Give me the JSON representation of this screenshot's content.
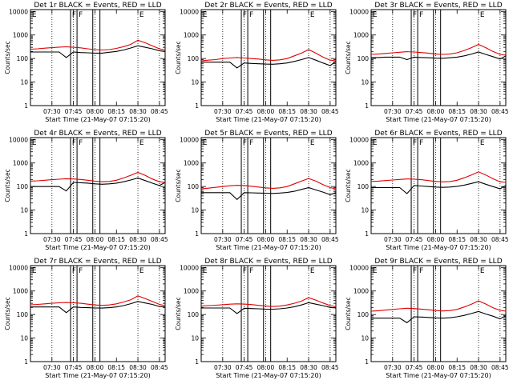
{
  "figure": {
    "xaxis_title": "Start Time (21-May-07 07:15:20)",
    "yaxis_title": "Counts/sec",
    "panel_title_suffix": " BLACK = Events, RED = LLD",
    "xtick_labels": [
      "07:30",
      "07:45",
      "08:00",
      "08:15",
      "08:30",
      "08:45"
    ],
    "ytick_labels": [
      "1",
      "10",
      "100",
      "1000",
      "10000"
    ],
    "colors": {
      "events": "#000000",
      "lld": "#e00000",
      "axes": "#000000"
    },
    "x_range_minutes": [
      0,
      94
    ],
    "xtick_minutes": [
      15,
      30,
      45,
      60,
      75,
      90
    ],
    "y_range": [
      1,
      12000
    ],
    "y_scale": "log",
    "dotted_vertical_minutes": [
      15,
      30,
      45,
      75,
      90
    ],
    "solid_vertical_minutes": [
      28,
      32.5,
      43.5,
      48.5
    ],
    "markers": [
      {
        "label": "E",
        "minute": 0.5
      },
      {
        "label": "F",
        "minute": 28.5
      },
      {
        "label": "F",
        "minute": 33
      },
      {
        "label": "E",
        "minute": 75.5
      }
    ]
  },
  "chart_data": [
    {
      "type": "line",
      "title": "Det 1r",
      "x_minutes": [
        0,
        5,
        10,
        15,
        20,
        25,
        30,
        35,
        40,
        45,
        50,
        55,
        60,
        65,
        70,
        75,
        80,
        85,
        90,
        94
      ],
      "series": [
        {
          "name": "BLACK = Events",
          "values": [
            190,
            190,
            190,
            190,
            190,
            110,
            190,
            180,
            175,
            170,
            170,
            185,
            200,
            230,
            280,
            350,
            300,
            260,
            215,
            200
          ]
        },
        {
          "name": "RED = LLD",
          "values": [
            250,
            260,
            275,
            290,
            305,
            315,
            300,
            285,
            260,
            240,
            230,
            240,
            270,
            320,
            400,
            600,
            470,
            350,
            260,
            230
          ]
        }
      ]
    },
    {
      "type": "line",
      "title": "Det 2r",
      "x_minutes": [
        0,
        5,
        10,
        15,
        20,
        25,
        30,
        35,
        40,
        45,
        50,
        55,
        60,
        65,
        70,
        75,
        80,
        85,
        90,
        94
      ],
      "series": [
        {
          "name": "BLACK = Events",
          "values": [
            70,
            70,
            70,
            70,
            70,
            40,
            65,
            62,
            60,
            58,
            57,
            60,
            65,
            75,
            90,
            110,
            85,
            65,
            50,
            75
          ]
        },
        {
          "name": "RED = LLD",
          "values": [
            80,
            85,
            90,
            100,
            105,
            110,
            105,
            100,
            95,
            88,
            84,
            88,
            100,
            130,
            170,
            240,
            170,
            115,
            85,
            80
          ]
        }
      ]
    },
    {
      "type": "line",
      "title": "Det 3r",
      "x_minutes": [
        0,
        5,
        10,
        15,
        20,
        25,
        30,
        35,
        40,
        45,
        50,
        55,
        60,
        65,
        70,
        75,
        80,
        85,
        90,
        94
      ],
      "series": [
        {
          "name": "BLACK = Events",
          "values": [
            110,
            110,
            115,
            115,
            115,
            90,
            115,
            110,
            108,
            104,
            102,
            108,
            115,
            130,
            155,
            190,
            150,
            120,
            95,
            130
          ]
        },
        {
          "name": "RED = LLD",
          "values": [
            150,
            155,
            165,
            175,
            185,
            195,
            190,
            180,
            170,
            155,
            150,
            155,
            175,
            220,
            290,
            400,
            290,
            200,
            150,
            140
          ]
        }
      ]
    },
    {
      "type": "line",
      "title": "Det 4r",
      "x_minutes": [
        0,
        5,
        10,
        15,
        20,
        25,
        30,
        35,
        40,
        45,
        50,
        55,
        60,
        65,
        70,
        75,
        80,
        85,
        90,
        94
      ],
      "series": [
        {
          "name": "BLACK = Events",
          "values": [
            100,
            100,
            100,
            100,
            100,
            65,
            150,
            145,
            140,
            130,
            125,
            130,
            140,
            160,
            190,
            230,
            180,
            140,
            110,
            150
          ]
        },
        {
          "name": "RED = LLD",
          "values": [
            170,
            175,
            185,
            195,
            205,
            215,
            210,
            200,
            185,
            170,
            160,
            165,
            185,
            230,
            300,
            400,
            300,
            210,
            160,
            150
          ]
        }
      ]
    },
    {
      "type": "line",
      "title": "Det 5r",
      "x_minutes": [
        0,
        5,
        10,
        15,
        20,
        25,
        30,
        35,
        40,
        45,
        50,
        55,
        60,
        65,
        70,
        75,
        80,
        85,
        90,
        94
      ],
      "series": [
        {
          "name": "BLACK = Events",
          "values": [
            55,
            55,
            55,
            55,
            55,
            28,
            55,
            54,
            53,
            52,
            51,
            53,
            56,
            63,
            75,
            90,
            72,
            58,
            45,
            55
          ]
        },
        {
          "name": "RED = LLD",
          "values": [
            80,
            85,
            92,
            100,
            108,
            112,
            110,
            103,
            95,
            88,
            84,
            88,
            100,
            130,
            170,
            220,
            170,
            120,
            90,
            80
          ]
        }
      ]
    },
    {
      "type": "line",
      "title": "Det 6r",
      "x_minutes": [
        0,
        5,
        10,
        15,
        20,
        25,
        30,
        35,
        40,
        45,
        50,
        55,
        60,
        65,
        70,
        75,
        80,
        85,
        90,
        94
      ],
      "series": [
        {
          "name": "BLACK = Events",
          "values": [
            90,
            90,
            90,
            90,
            90,
            50,
            110,
            105,
            100,
            95,
            92,
            95,
            102,
            115,
            135,
            160,
            125,
            100,
            80,
            110
          ]
        },
        {
          "name": "RED = LLD",
          "values": [
            165,
            170,
            180,
            190,
            200,
            210,
            205,
            195,
            180,
            165,
            158,
            163,
            185,
            235,
            310,
            420,
            310,
            215,
            160,
            150
          ]
        }
      ]
    },
    {
      "type": "line",
      "title": "Det 7r",
      "x_minutes": [
        0,
        5,
        10,
        15,
        20,
        25,
        30,
        35,
        40,
        45,
        50,
        55,
        60,
        65,
        70,
        75,
        80,
        85,
        90,
        94
      ],
      "series": [
        {
          "name": "BLACK = Events",
          "values": [
            210,
            210,
            210,
            210,
            210,
            120,
            210,
            200,
            195,
            190,
            188,
            195,
            210,
            240,
            290,
            360,
            310,
            270,
            220,
            210
          ]
        },
        {
          "name": "RED = LLD",
          "values": [
            260,
            270,
            285,
            300,
            315,
            325,
            315,
            300,
            275,
            255,
            245,
            255,
            285,
            340,
            420,
            620,
            480,
            360,
            270,
            240
          ]
        }
      ]
    },
    {
      "type": "line",
      "title": "Det 8r",
      "x_minutes": [
        0,
        5,
        10,
        15,
        20,
        25,
        30,
        35,
        40,
        45,
        50,
        55,
        60,
        65,
        70,
        75,
        80,
        85,
        90,
        94
      ],
      "series": [
        {
          "name": "BLACK = Events",
          "values": [
            190,
            190,
            190,
            190,
            190,
            110,
            185,
            180,
            175,
            170,
            168,
            175,
            190,
            215,
            255,
            320,
            275,
            240,
            200,
            190
          ]
        },
        {
          "name": "RED = LLD",
          "values": [
            230,
            240,
            250,
            262,
            275,
            285,
            278,
            265,
            245,
            228,
            220,
            228,
            255,
            300,
            370,
            520,
            410,
            310,
            240,
            215
          ]
        }
      ]
    },
    {
      "type": "line",
      "title": "Det 9r",
      "x_minutes": [
        0,
        5,
        10,
        15,
        20,
        25,
        30,
        35,
        40,
        45,
        50,
        55,
        60,
        65,
        70,
        75,
        80,
        85,
        90,
        94
      ],
      "series": [
        {
          "name": "BLACK = Events",
          "values": [
            70,
            70,
            70,
            70,
            70,
            45,
            80,
            78,
            75,
            72,
            70,
            73,
            80,
            92,
            110,
            135,
            105,
            85,
            65,
            90
          ]
        },
        {
          "name": "RED = LLD",
          "values": [
            140,
            145,
            155,
            165,
            175,
            185,
            180,
            170,
            160,
            148,
            142,
            148,
            165,
            210,
            275,
            380,
            280,
            195,
            150,
            140
          ]
        }
      ]
    }
  ]
}
